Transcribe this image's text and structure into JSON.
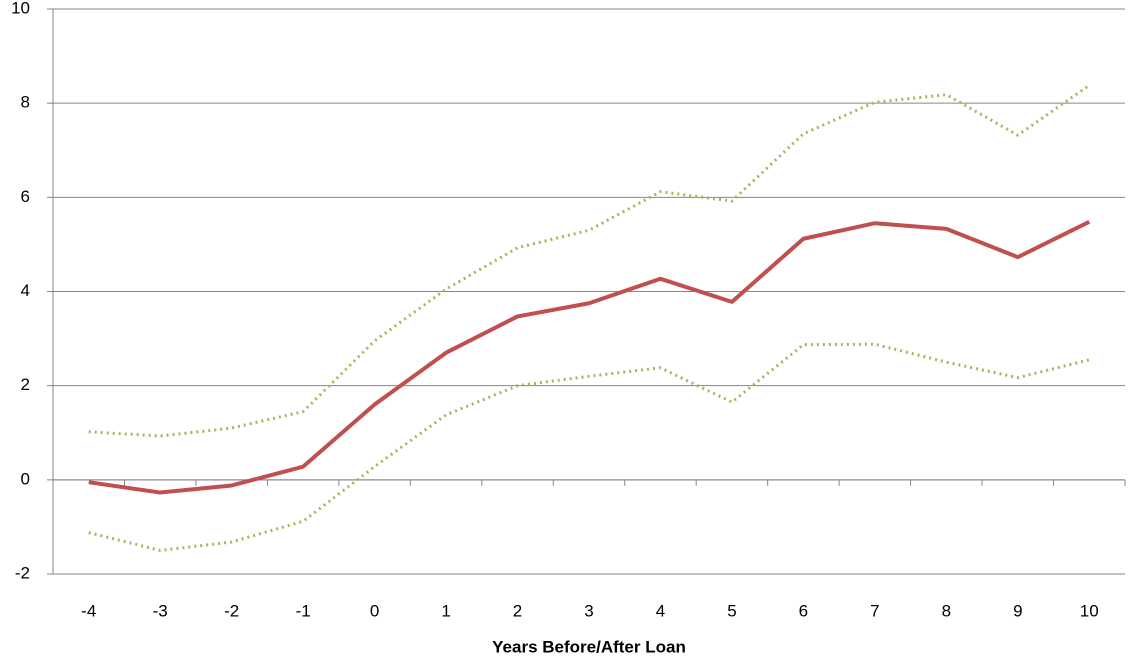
{
  "chart_data": {
    "type": "line",
    "x_label": "Years Before/After Loan",
    "categories": [
      "-4",
      "-3",
      "-2",
      "-1",
      "0",
      "1",
      "2",
      "3",
      "4",
      "5",
      "6",
      "7",
      "8",
      "9",
      "10"
    ],
    "series": [
      {
        "color": "#9bbb59",
        "line_style": "dotted",
        "values": [
          1.02,
          0.93,
          1.1,
          1.45,
          2.95,
          4.05,
          4.93,
          5.3,
          6.12,
          5.92,
          7.35,
          8.02,
          8.18,
          7.32,
          8.38
        ]
      },
      {
        "color": "#9bbb59",
        "line_style": "dotted",
        "values": [
          -1.12,
          -1.5,
          -1.32,
          -0.88,
          0.28,
          1.38,
          2.0,
          2.2,
          2.38,
          1.65,
          2.87,
          2.88,
          2.5,
          2.17,
          2.55
        ]
      },
      {
        "color": "#c0504d",
        "line_style": "solid",
        "values": [
          -0.05,
          -0.27,
          -0.12,
          0.28,
          1.6,
          2.7,
          3.47,
          3.75,
          4.27,
          3.78,
          5.12,
          5.45,
          5.33,
          4.73,
          5.48
        ]
      }
    ],
    "ylim": [
      -2,
      10
    ],
    "yticks": [
      -2,
      0,
      2,
      4,
      6,
      8,
      10
    ],
    "grid": true
  }
}
